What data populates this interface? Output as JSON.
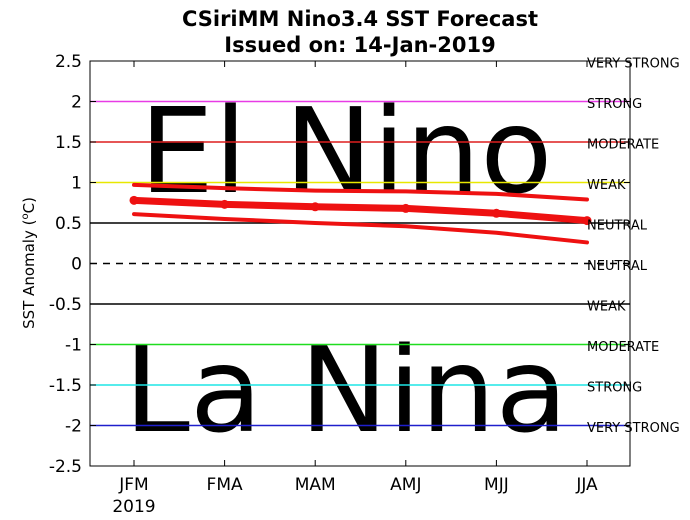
{
  "chart_data": {
    "type": "line",
    "title": "CSiriMM Nino3.4 SST Forecast",
    "subtitle": "Issued on: 14-Jan-2019",
    "ylabel": "SST Anomaly (",
    "ylabel_sup": "o",
    "ylabel_unit": "C)",
    "xlabel": "",
    "ylim": [
      -2.5,
      2.5
    ],
    "yticks": [
      2.5,
      2,
      1.5,
      1,
      0.5,
      0,
      -0.5,
      -1,
      -1.5,
      -2,
      -2.5
    ],
    "ytick_labels": [
      "2.5",
      "2",
      "1.5",
      "1",
      "0.5",
      "0",
      "-0.5",
      "-1",
      "-1.5",
      "-2",
      "-2.5"
    ],
    "categories": [
      "JFM",
      "FMA",
      "MAM",
      "AMJ",
      "MJJ",
      "JJA"
    ],
    "year_label": "2019",
    "series": [
      {
        "role": "mean",
        "values": [
          0.78,
          0.73,
          0.7,
          0.68,
          0.62,
          0.53
        ],
        "markers": true
      },
      {
        "role": "upper",
        "values": [
          0.97,
          0.93,
          0.9,
          0.89,
          0.86,
          0.79
        ],
        "markers": false
      },
      {
        "role": "lower",
        "values": [
          0.61,
          0.55,
          0.5,
          0.46,
          0.38,
          0.26
        ],
        "markers": false
      }
    ],
    "threshold_lines": [
      {
        "value": 2,
        "color": "#e83be6"
      },
      {
        "value": 1.5,
        "color": "#dd1f1f"
      },
      {
        "value": 1,
        "color": "#e8e800"
      },
      {
        "value": 0.5,
        "color": "#000000"
      },
      {
        "value": 0,
        "color": "#000000",
        "dashed": true
      },
      {
        "value": -0.5,
        "color": "#000000"
      },
      {
        "value": -1,
        "color": "#1fdd1f"
      },
      {
        "value": -1.5,
        "color": "#1fe6e6"
      },
      {
        "value": -2,
        "color": "#1f1fcc"
      }
    ],
    "series_color": "#ee1111",
    "region_labels": [
      {
        "text": "VERY STRONG",
        "value": 2.25
      },
      {
        "text": "STRONG",
        "value": 1.75
      },
      {
        "text": "MODERATE",
        "value": 1.25
      },
      {
        "text": "WEAK",
        "value": 0.75
      },
      {
        "text": "NEUTRAL",
        "value": 0.25
      },
      {
        "text": "NEUTRAL",
        "value": -0.25
      },
      {
        "text": "WEAK",
        "value": -0.75
      },
      {
        "text": "MODERATE",
        "value": -1.25
      },
      {
        "text": "STRONG",
        "value": -1.75
      },
      {
        "text": "VERY STRONG",
        "value": -2.25
      }
    ],
    "phase_labels": [
      {
        "text": "El Nino",
        "value": 1.4
      },
      {
        "text": "La Nina",
        "value": -1.55
      }
    ],
    "grid": false
  }
}
